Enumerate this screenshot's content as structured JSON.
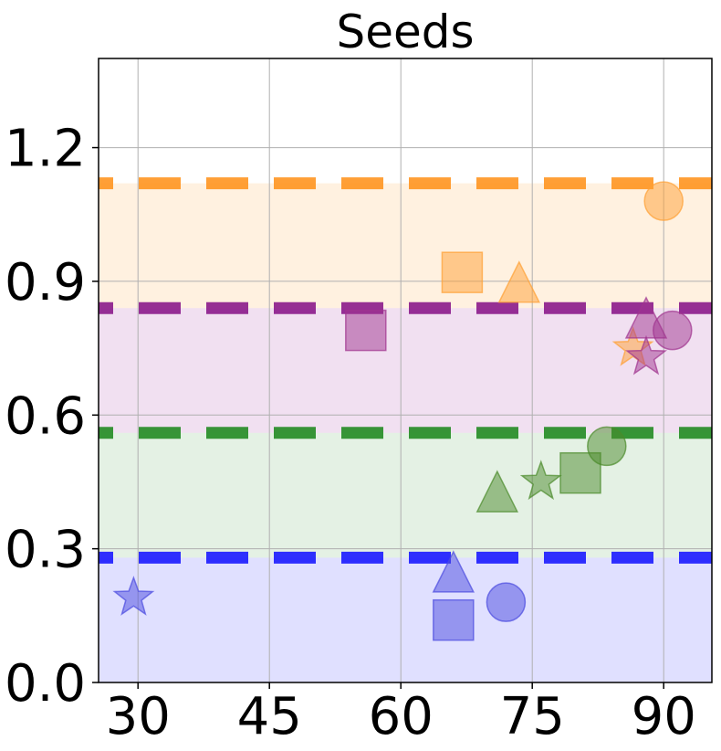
{
  "chart_data": {
    "type": "scatter",
    "title": "Seeds",
    "xlabel": "",
    "ylabel": "",
    "xlim": [
      25.5,
      95.5
    ],
    "ylim": [
      0.0,
      1.4
    ],
    "xticks": [
      30,
      45,
      60,
      75,
      90
    ],
    "yticks": [
      0.0,
      0.3,
      0.6,
      0.9,
      1.2
    ],
    "xtick_labels": [
      "30",
      "45",
      "60",
      "75",
      "90"
    ],
    "ytick_labels": [
      "0.0",
      "0.3",
      "0.6",
      "0.9",
      "1.2"
    ],
    "grid": true,
    "legend": "none",
    "bands": [
      {
        "color": "#0000ff",
        "from": 0.0,
        "to": 0.28
      },
      {
        "color": "#228b22",
        "from": 0.28,
        "to": 0.56
      },
      {
        "color": "#8b008b",
        "from": 0.56,
        "to": 0.84
      },
      {
        "color": "#ff8c00",
        "from": 0.84,
        "to": 1.12
      }
    ],
    "thresholds": [
      {
        "color": "#1a1aff",
        "y": 0.28
      },
      {
        "color": "#228b22",
        "y": 0.56
      },
      {
        "color": "#8b1a8b",
        "y": 0.84
      },
      {
        "color": "#ff9520",
        "y": 1.12
      }
    ],
    "series": [
      {
        "color": "#ffa033",
        "points": [
          {
            "marker": "circle",
            "x": 90.0,
            "y": 1.08
          },
          {
            "marker": "square",
            "x": 67.0,
            "y": 0.92
          },
          {
            "marker": "triangle",
            "x": 73.5,
            "y": 0.89
          },
          {
            "marker": "star",
            "x": 86.5,
            "y": 0.75
          }
        ]
      },
      {
        "color": "#a0338f",
        "points": [
          {
            "marker": "circle",
            "x": 91.0,
            "y": 0.79
          },
          {
            "marker": "square",
            "x": 56.0,
            "y": 0.79
          },
          {
            "marker": "triangle",
            "x": 88.0,
            "y": 0.81
          },
          {
            "marker": "star",
            "x": 88.0,
            "y": 0.73
          }
        ]
      },
      {
        "color": "#4a8a2a",
        "points": [
          {
            "marker": "circle",
            "x": 83.5,
            "y": 0.53
          },
          {
            "marker": "square",
            "x": 80.5,
            "y": 0.47
          },
          {
            "marker": "triangle",
            "x": 71.0,
            "y": 0.42
          },
          {
            "marker": "star",
            "x": 76.0,
            "y": 0.45
          }
        ]
      },
      {
        "color": "#4a4ae0",
        "points": [
          {
            "marker": "circle",
            "x": 72.0,
            "y": 0.18
          },
          {
            "marker": "square",
            "x": 66.0,
            "y": 0.14
          },
          {
            "marker": "triangle",
            "x": 66.0,
            "y": 0.24
          },
          {
            "marker": "star",
            "x": 29.5,
            "y": 0.19
          }
        ]
      }
    ]
  }
}
